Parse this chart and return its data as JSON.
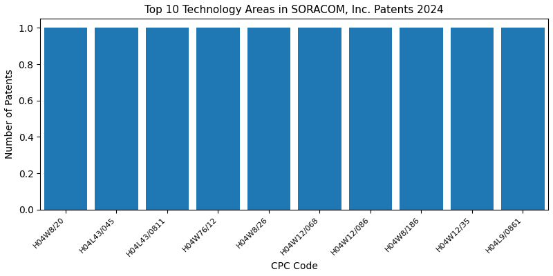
{
  "title": "Top 10 Technology Areas in SORACOM, Inc. Patents 2024",
  "categories": [
    "H04W8/20",
    "H04L43/045",
    "H04L43/0811",
    "H04W76/12",
    "H04W8/26",
    "H04W12/068",
    "H04W12/086",
    "H04W8/186",
    "H04W12/35",
    "H04L9/0861"
  ],
  "values": [
    1,
    1,
    1,
    1,
    1,
    1,
    1,
    1,
    1,
    1
  ],
  "bar_color": "#1f77b4",
  "xlabel": "CPC Code",
  "ylabel": "Number of Patents",
  "ylim": [
    0,
    1.05
  ],
  "yticks": [
    0.0,
    0.2,
    0.4,
    0.6,
    0.8,
    1.0
  ],
  "figsize": [
    8.0,
    4.0
  ],
  "dpi": 100,
  "bar_width": 0.85,
  "tick_fontsize": 8,
  "label_fontsize": 10,
  "title_fontsize": 11
}
